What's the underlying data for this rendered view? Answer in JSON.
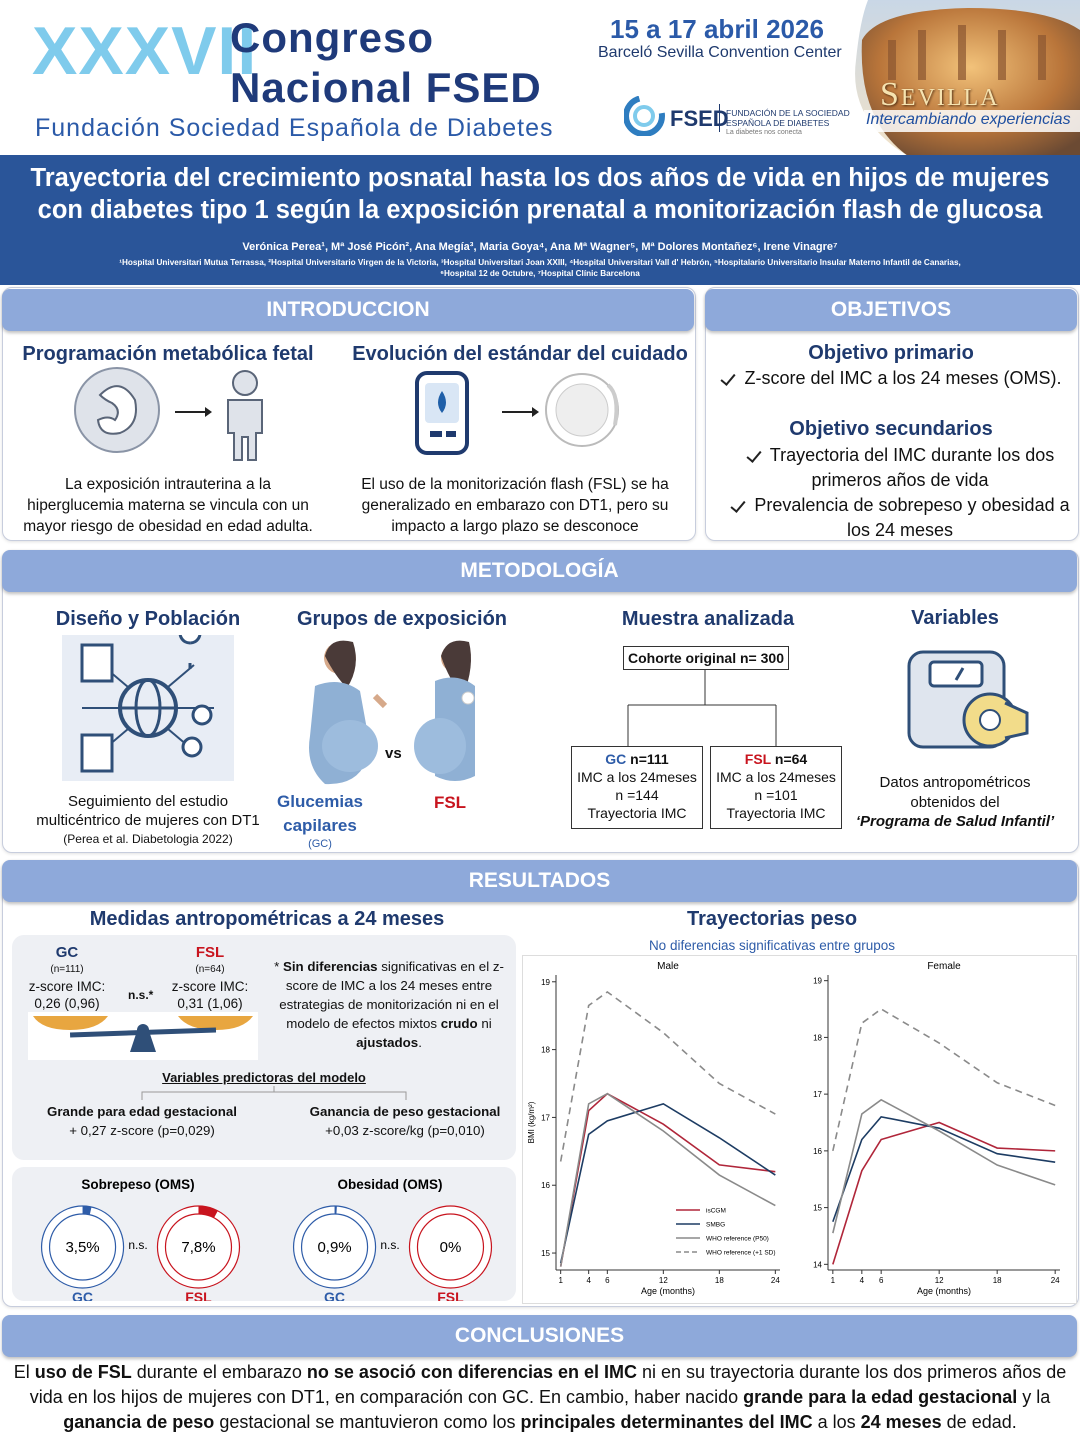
{
  "header": {
    "edition": "XXXVII",
    "congress_line1": "Congreso",
    "congress_line2": "Nacional FSED",
    "foundation": "Fundación Sociedad Española de Diabetes",
    "dates": "15 a 17 abril 2026",
    "venue": "Barceló Sevilla Convention Center",
    "logo_acronym": "FSED",
    "logo_line1": "FUNDACIÓN DE LA SOCIEDAD",
    "logo_line2": "ESPAÑOLA DE DIABETES",
    "logo_tagline": "La diabetes nos conecta",
    "city": "Sevilla",
    "city_tagline": "Intercambiando experiencias"
  },
  "title": {
    "lines": [
      "Trayectoria del crecimiento posnatal hasta los dos años de vida en hijos de mujeres",
      "con diabetes tipo 1 según la exposición prenatal a monitorización flash de glucosa"
    ],
    "authors": "Verónica Perea¹, Mª José Picón², Ana Megía³, Maria Goya⁴, Ana Mª Wagner⁵,  Mª Dolores Montañez⁶, Irene Vinagre⁷",
    "affiliations": [
      "¹Hospital Universitari Mutua Terrassa, ²Hospital Universitario Virgen de la Victoria, ³Hospital Universitari Joan XXIII, ⁴Hospital Universitari Vall d' Hebrón, ⁵Hospitalario Universitario Insular Materno Infantil de Canarias,",
      "⁶Hospital 12 de Octubre, ⁷Hospital Clínic Barcelona"
    ]
  },
  "introduction": {
    "heading": "INTRODUCCION",
    "left_title": "Programación metabólica fetal",
    "left_text": "La exposición intrauterina a la hiperglucemia materna se vincula con un mayor riesgo de obesidad en edad adulta.",
    "right_title": "Evolución del estándar del cuidado",
    "right_text": "El uso de la monitorización flash (FSL) se ha generalizado en embarazo con DT1, pero su impacto a largo plazo se desconoce"
  },
  "objectives": {
    "heading": "OBJETIVOS",
    "primary_title": "Objetivo primario",
    "primary_items": [
      "Z-score del IMC a los 24 meses (OMS)."
    ],
    "secondary_title": "Objetivo secundarios",
    "secondary_items": [
      "Trayectoria del IMC durante los dos primeros años de vida",
      "Prevalencia de sobrepeso y obesidad a los 24 meses"
    ]
  },
  "methods": {
    "heading": "METODOLOGÍA",
    "design_title": "Diseño y Población",
    "design_text": "Seguimiento del estudio multicéntrico de mujeres con DT1",
    "design_reference": "(Perea et al. Diabetologia 2022)",
    "groups_title": "Grupos de exposición",
    "versus": "vs",
    "group_gc": "Glucemias capilares",
    "group_gc_abbr": "(GC)",
    "group_fsl": "FSL",
    "sample_title": "Muestra analizada",
    "cohort": "Cohorte original n= 300",
    "gc_box": {
      "group": "GC",
      "n": "n=111",
      "lines": [
        "IMC a los 24meses",
        "n =144",
        "Trayectoria IMC"
      ]
    },
    "fsl_box": {
      "group": "FSL",
      "n": "n=64",
      "lines": [
        "IMC a los 24meses",
        "n =101",
        "Trayectoria IMC"
      ]
    },
    "variables_title": "Variables",
    "variables_text": "Datos antropométricos obtenidos del",
    "variables_source": "‘Programa de Salud Infantil’"
  },
  "results": {
    "heading": "RESULTADOS",
    "measures_title": "Medidas antropométricas a 24 meses",
    "gc": {
      "label": "GC",
      "n": "(n=111)",
      "metric": "z-score IMC:",
      "value": "0,26 (0,96)"
    },
    "fsl": {
      "label": "FSL",
      "n": "(n=64)",
      "metric": "z-score IMC:",
      "value": "0,31 (1,06)"
    },
    "comparison": "n.s.*",
    "note_segments": [
      {
        "text": "* "
      },
      {
        "text": "Sin diferencias",
        "bold": true
      },
      {
        "text": " significativas en el z-score de IMC  a los 24 meses entre estrategias de monitorización ni en el modelo de efectos mixtos "
      },
      {
        "text": "crudo",
        "bold": true
      },
      {
        "text": " ni "
      },
      {
        "text": "ajustados",
        "bold": true
      },
      {
        "text": "."
      }
    ],
    "predictors_title": "Variables predictoras del modelo",
    "predictors": [
      {
        "name": "Grande para edad gestacional",
        "effect": "+ 0,27 z-score (p=0,029)"
      },
      {
        "name": "Ganancia de peso gestacional",
        "effect": "+0,03 z-score/kg (p=0,010)"
      }
    ],
    "trajectories_title": "Trayectorias peso",
    "trajectories_note": "No diferencias significativas entre grupos"
  },
  "chart_data": [
    {
      "type": "line",
      "title": "Male",
      "xlabel": "Age (months)",
      "ylabel": "BMI (kg/m²)",
      "x": [
        1,
        4,
        6,
        12,
        18,
        24
      ],
      "xlim": [
        0.5,
        24.5
      ],
      "xticks": [
        1,
        4,
        6,
        12,
        18,
        24
      ],
      "ylim": [
        14.75,
        19.1
      ],
      "yticks": [
        15,
        16,
        17,
        18,
        19
      ],
      "legend": "lower right",
      "series": [
        {
          "name": "isCGM",
          "color": "#b0263a",
          "values": [
            14.8,
            17.1,
            17.35,
            16.9,
            16.3,
            16.2
          ]
        },
        {
          "name": "SMBG",
          "color": "#1d3c63",
          "values": [
            14.85,
            16.75,
            16.95,
            17.2,
            16.7,
            16.15
          ]
        },
        {
          "name": "WHO reference (P50)",
          "color": "#8a8a8a",
          "values": [
            14.8,
            17.2,
            17.35,
            16.8,
            16.15,
            15.7
          ]
        },
        {
          "name": "WHO reference (+1 SD)",
          "color": "#8a8a8a",
          "dashed": true,
          "values": [
            16.35,
            18.65,
            18.85,
            18.25,
            17.5,
            17.05
          ]
        }
      ]
    },
    {
      "type": "line",
      "title": "Female",
      "xlabel": "Age (months)",
      "x": [
        1,
        4,
        6,
        12,
        18,
        24
      ],
      "xlim": [
        0.5,
        24.5
      ],
      "xticks": [
        1,
        4,
        6,
        12,
        18,
        24
      ],
      "ylim": [
        13.9,
        19.1
      ],
      "yticks": [
        14,
        15,
        16,
        17,
        18,
        19
      ],
      "series": [
        {
          "name": "isCGM",
          "color": "#b0263a",
          "values": [
            14.0,
            15.65,
            16.2,
            16.5,
            16.05,
            16.0
          ]
        },
        {
          "name": "SMBG",
          "color": "#1d3c63",
          "values": [
            14.75,
            16.2,
            16.6,
            16.4,
            15.95,
            15.8
          ]
        },
        {
          "name": "WHO reference (P50)",
          "color": "#8a8a8a",
          "values": [
            14.55,
            16.65,
            16.9,
            16.35,
            15.75,
            15.4
          ]
        },
        {
          "name": "WHO reference (+1 SD)",
          "color": "#8a8a8a",
          "dashed": true,
          "values": [
            16.0,
            18.25,
            18.5,
            17.9,
            17.2,
            16.8
          ]
        }
      ]
    },
    {
      "type": "donut",
      "title": "Sobrepeso (OMS)",
      "categories": [
        "GC",
        "FSL"
      ],
      "values": [
        3.5,
        7.8
      ],
      "value_labels": [
        "3,5%",
        "7,8%"
      ],
      "colors": [
        "#2e5ca8",
        "#c8141e"
      ],
      "annotation": "n.s."
    },
    {
      "type": "donut",
      "title": "Obesidad (OMS)",
      "categories": [
        "GC",
        "FSL"
      ],
      "values": [
        0.9,
        0
      ],
      "value_labels": [
        "0,9%",
        "0%"
      ],
      "colors": [
        "#2e5ca8",
        "#c8141e"
      ],
      "annotation": "n.s."
    }
  ],
  "conclusions": {
    "heading": "CONCLUSIONES",
    "segments": [
      {
        "text": "El "
      },
      {
        "text": "uso de FSL",
        "bold": true
      },
      {
        "text": " durante el embarazo "
      },
      {
        "text": "no se asoció con diferencias en el IMC",
        "bold": true
      },
      {
        "text": " ni en su trayectoria durante los dos primeros años de vida en los hijos de mujeres con DT1, en comparación con GC. En cambio, haber nacido "
      },
      {
        "text": "grande para la edad gestacional",
        "bold": true
      },
      {
        "text": " y la "
      },
      {
        "text": "ganancia de peso",
        "bold": true
      },
      {
        "text": " gestacional se mantuvieron como los "
      },
      {
        "text": "principales determinantes del IMC",
        "bold": true
      },
      {
        "text": " a los "
      },
      {
        "text": "24 meses",
        "bold": true
      },
      {
        "text": " de edad."
      }
    ]
  }
}
